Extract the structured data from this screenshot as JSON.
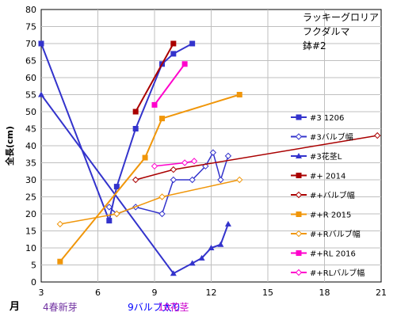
{
  "chart_data": {
    "type": "line",
    "annotation_lines": [
      "ラッキーグロリア",
      "フクダルマ",
      "鉢#2"
    ],
    "xlabel": "月",
    "ylabel": "全長(cm)",
    "xlim": [
      3,
      21
    ],
    "ylim": [
      0,
      80
    ],
    "x_ticks": [
      3,
      6,
      9,
      12,
      15,
      18,
      21
    ],
    "y_ticks": [
      0,
      5,
      10,
      15,
      20,
      25,
      30,
      35,
      40,
      45,
      50,
      55,
      60,
      65,
      70,
      75,
      80
    ],
    "grid": true,
    "legend_position": "right",
    "x_notes": [
      {
        "text": "4春新芽",
        "color": "#7030a0",
        "x": 4
      },
      {
        "text": "9バルブ太り",
        "color": "#0000ff",
        "x": 9
      },
      {
        "text": "10花茎",
        "color": "#cc00cc",
        "x": 10
      }
    ],
    "series": [
      {
        "name": "#3 1206",
        "color": "#3333cc",
        "marker": "square-filled",
        "points": [
          [
            3,
            70
          ],
          [
            6.6,
            18
          ],
          [
            7,
            28
          ],
          [
            8,
            45
          ],
          [
            9.4,
            64
          ],
          [
            10,
            67
          ],
          [
            11,
            70
          ]
        ]
      },
      {
        "name": "#3バルブ幅",
        "color": "#3333cc",
        "marker": "diamond-open",
        "points": [
          [
            6.6,
            22
          ],
          [
            7,
            20
          ],
          [
            8,
            22
          ],
          [
            9.4,
            20
          ],
          [
            10,
            30
          ],
          [
            11,
            30
          ],
          [
            11.7,
            34
          ],
          [
            12.1,
            38
          ],
          [
            12.5,
            30
          ],
          [
            12.9,
            37
          ]
        ]
      },
      {
        "name": "#3花茎L",
        "color": "#3333cc",
        "marker": "triangle-filled",
        "points": [
          [
            3,
            55
          ],
          [
            10,
            2.5
          ],
          [
            11,
            5.5
          ],
          [
            11.5,
            7
          ],
          [
            12,
            10
          ],
          [
            12.5,
            11
          ],
          [
            12.9,
            17
          ]
        ]
      },
      {
        "name": "#+ 2014",
        "color": "#aa0000",
        "marker": "square-filled",
        "points": [
          [
            8,
            50
          ],
          [
            10,
            70
          ]
        ]
      },
      {
        "name": "#+バルブ幅",
        "color": "#aa0000",
        "marker": "diamond-open",
        "points": [
          [
            8,
            30
          ],
          [
            10,
            33
          ],
          [
            20.8,
            43
          ]
        ]
      },
      {
        "name": "#+R 2015",
        "color": "#f0960a",
        "marker": "square-filled",
        "points": [
          [
            4,
            6
          ],
          [
            8.5,
            36.5
          ],
          [
            9.4,
            48
          ],
          [
            13.5,
            55
          ]
        ]
      },
      {
        "name": "#+Rバルブ幅",
        "color": "#f0960a",
        "marker": "diamond-open",
        "points": [
          [
            4,
            17
          ],
          [
            7,
            20
          ],
          [
            9.4,
            25
          ],
          [
            13.5,
            30
          ]
        ]
      },
      {
        "name": "#+RL 2016",
        "color": "#ff00cc",
        "marker": "square-filled",
        "points": [
          [
            9,
            52
          ],
          [
            10.6,
            64
          ]
        ]
      },
      {
        "name": "#+RLバルブ幅",
        "color": "#ff00cc",
        "marker": "diamond-open",
        "points": [
          [
            9,
            34
          ],
          [
            10.6,
            35
          ],
          [
            11.1,
            35.5
          ]
        ]
      }
    ]
  }
}
